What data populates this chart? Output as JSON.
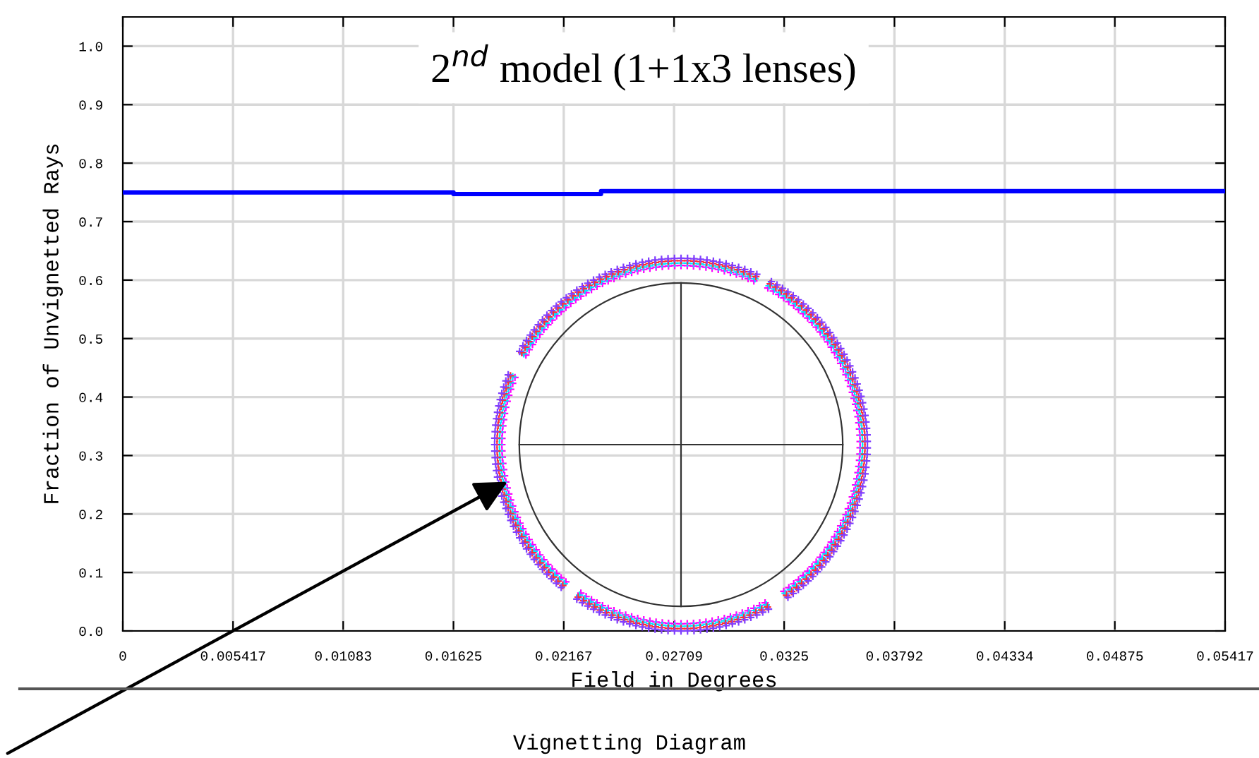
{
  "chart_data": {
    "type": "step",
    "title": "Vignetting Diagram",
    "xlabel": "Field in Degrees",
    "ylabel": "Fraction of Unvignetted Rays",
    "annotations": [
      "2$^{nd}$ model (1+1x3 lenses)"
    ],
    "series": [
      {
        "color": "#0000ff",
        "x": [
          0,
          0.01625,
          0.0235,
          0.05417
        ],
        "values": [
          0.75,
          0.747,
          0.752,
          0.752
        ]
      }
    ],
    "xlim": [
      0,
      0.05417
    ],
    "ylim": [
      0,
      1.05
    ],
    "xticks": [
      0,
      0.005417,
      0.01083,
      0.01625,
      0.02167,
      0.02709,
      0.0325,
      0.03792,
      0.04334,
      0.04875,
      0.05417
    ],
    "yticks": [
      {
        "value": 0,
        "label": "0.0"
      },
      0.1,
      0.2,
      0.3,
      0.4,
      0.5,
      0.6,
      0.7,
      0.8,
      0.9,
      {
        "value": 1,
        "label": "1.0"
      }
    ],
    "grid": true,
    "marker": "none",
    "line_style": "solid"
  }
}
